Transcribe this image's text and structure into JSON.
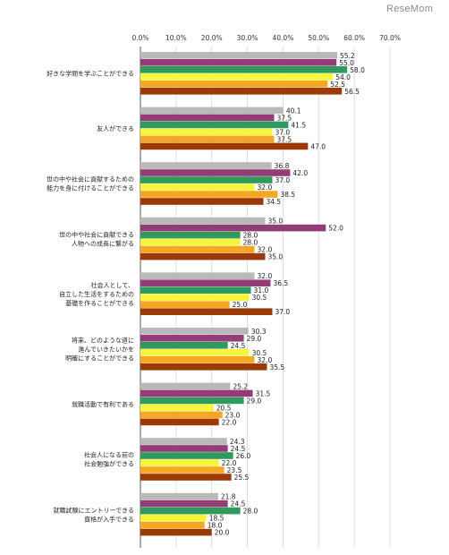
{
  "watermark": "ReseMom",
  "chart_data": {
    "type": "bar",
    "orientation": "horizontal",
    "xlim": [
      0,
      70
    ],
    "tick_labels": [
      "0.0%",
      "10.0%",
      "20.0%",
      "30.0%",
      "40.0%",
      "50.0%",
      "60.0%",
      "70.0%"
    ],
    "grid": true,
    "legend": "none",
    "categories": [
      [
        "好きな学問を学ぶことができる"
      ],
      [
        "友人ができる"
      ],
      [
        "世の中や社会に貢献するための",
        "能力を身に付けることができる"
      ],
      [
        "世の中や社会に貢献できる",
        "人物への成長に繋がる"
      ],
      [
        "社会人として、",
        "自立した生活をするための",
        "基礎を作ることができる"
      ],
      [
        "将来、どのような道に",
        "進んでいきたいかを",
        "明確にすることができる"
      ],
      [
        "就職活動で有利である"
      ],
      [
        "社会人になる前の",
        "社会勉強ができる"
      ],
      [
        "就職試験にエントリーできる",
        "資格が入手できる"
      ]
    ],
    "series": [
      {
        "color": "#b9b9b9",
        "values": [
          55.2,
          40.1,
          36.8,
          35.0,
          32.0,
          30.3,
          25.2,
          24.3,
          21.8
        ]
      },
      {
        "color": "#933c75",
        "values": [
          55.0,
          37.5,
          42.0,
          52.0,
          36.5,
          29.0,
          31.5,
          24.5,
          24.5
        ]
      },
      {
        "color": "#2e9a5e",
        "values": [
          58.0,
          41.5,
          37.0,
          28.0,
          31.0,
          24.5,
          29.0,
          26.0,
          28.0
        ]
      },
      {
        "color": "#f6f43c",
        "values": [
          54.0,
          37.0,
          32.0,
          28.0,
          30.5,
          30.5,
          20.5,
          22.0,
          18.5
        ]
      },
      {
        "color": "#f5a623",
        "values": [
          52.5,
          37.5,
          38.5,
          32.0,
          25.0,
          32.0,
          23.0,
          23.5,
          18.0
        ]
      },
      {
        "color": "#9b3a07",
        "values": [
          56.5,
          47.0,
          34.5,
          35.0,
          37.0,
          35.5,
          22.0,
          25.5,
          20.0
        ]
      }
    ]
  }
}
